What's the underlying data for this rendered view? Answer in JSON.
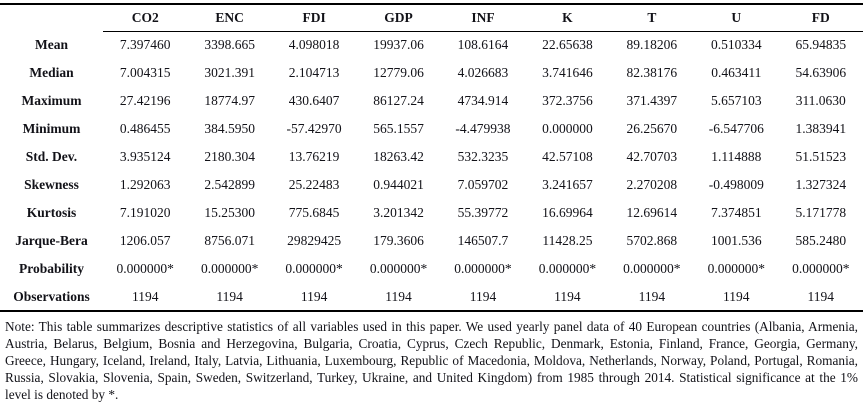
{
  "table": {
    "columns": [
      "CO2",
      "ENC",
      "FDI",
      "GDP",
      "INF",
      "K",
      "T",
      "U",
      "FD"
    ],
    "rows": [
      {
        "label": "Mean",
        "values": [
          "7.397460",
          "3398.665",
          "4.098018",
          "19937.06",
          "108.6164",
          "22.65638",
          "89.18206",
          "0.510334",
          "65.94835"
        ]
      },
      {
        "label": "Median",
        "values": [
          "7.004315",
          "3021.391",
          "2.104713",
          "12779.06",
          "4.026683",
          "3.741646",
          "82.38176",
          "0.463411",
          "54.63906"
        ]
      },
      {
        "label": "Maximum",
        "values": [
          "27.42196",
          "18774.97",
          "430.6407",
          "86127.24",
          "4734.914",
          "372.3756",
          "371.4397",
          "5.657103",
          "311.0630"
        ]
      },
      {
        "label": "Minimum",
        "values": [
          "0.486455",
          "384.5950",
          "-57.42970",
          "565.1557",
          "-4.479938",
          "0.000000",
          "26.25670",
          "-6.547706",
          "1.383941"
        ]
      },
      {
        "label": "Std. Dev.",
        "values": [
          "3.935124",
          "2180.304",
          "13.76219",
          "18263.42",
          "532.3235",
          "42.57108",
          "42.70703",
          "1.114888",
          "51.51523"
        ]
      },
      {
        "label": "Skewness",
        "values": [
          "1.292063",
          "2.542899",
          "25.22483",
          "0.944021",
          "7.059702",
          "3.241657",
          "2.270208",
          "-0.498009",
          "1.327324"
        ]
      },
      {
        "label": "Kurtosis",
        "values": [
          "7.191020",
          "15.25300",
          "775.6845",
          "3.201342",
          "55.39772",
          "16.69964",
          "12.69614",
          "7.374851",
          "5.171778"
        ]
      },
      {
        "label": "Jarque-Bera",
        "values": [
          "1206.057",
          "8756.071",
          "29829425",
          "179.3606",
          "146507.7",
          "11428.25",
          "5702.868",
          "1001.536",
          "585.2480"
        ]
      },
      {
        "label": "Probability",
        "values": [
          "0.000000*",
          "0.000000*",
          "0.000000*",
          "0.000000*",
          "0.000000*",
          "0.000000*",
          "0.000000*",
          "0.000000*",
          "0.000000*"
        ]
      },
      {
        "label": "Observations",
        "values": [
          "1194",
          "1194",
          "1194",
          "1194",
          "1194",
          "1194",
          "1194",
          "1194",
          "1194"
        ]
      }
    ]
  },
  "note": {
    "text": "Note: This table summarizes descriptive statistics of all variables used in this paper. We used yearly panel data of 40 European countries (Albania, Armenia, Austria, Belarus, Belgium, Bosnia and Herzegovina, Bulgaria, Croatia, Cyprus, Czech Republic, Denmark, Estonia, Finland, France, Georgia, Germany, Greece, Hungary, Iceland, Ireland, Italy, Latvia, Lithuania, Luxembourg, Republic of Macedonia, Moldova, Netherlands, Norway, Poland, Portugal, Romania, Russia, Slovakia, Slovenia, Spain, Sweden, Switzerland, Turkey, Ukraine, and United Kingdom) from 1985 through 2014. Statistical significance at the 1% level is denoted by *."
  },
  "colors": {
    "text": "#121218",
    "line": "#000000",
    "background": "#ffffff"
  }
}
